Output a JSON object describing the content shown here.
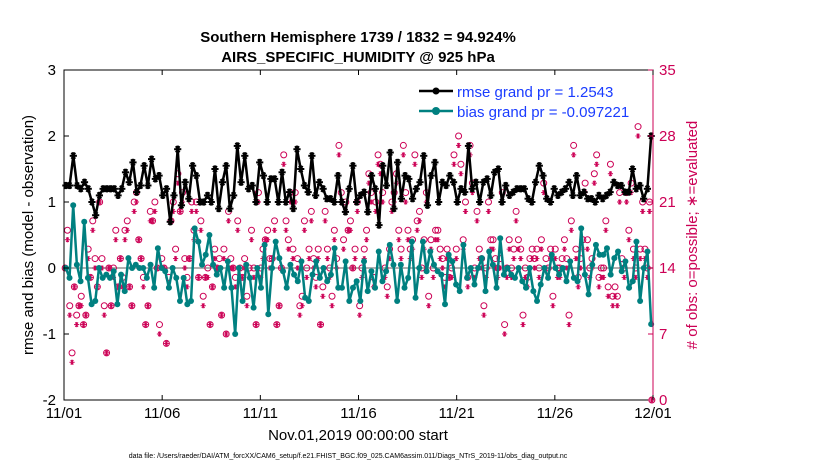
{
  "chart_data": {
    "type": "line",
    "title_line1": "Southern Hemisphere 1739 / 1832 = 94.924%",
    "title_line2": "AIRS_SPECIFIC_HUMIDITY @ 925 hPa",
    "xlabel": "Nov.01,2019 00:00:00 start",
    "ylabel_left": "rmse and bias (model - observation)",
    "ylabel_right": "# of obs: o=possible; ∗=evaluated",
    "ylim_left": [
      -2,
      3
    ],
    "ylim_right": [
      0,
      35
    ],
    "xlim_days": [
      0,
      30
    ],
    "x_ticks": [
      "11/01",
      "11/06",
      "11/11",
      "11/16",
      "11/21",
      "11/26",
      "12/01"
    ],
    "y_ticks_left": [
      "-2",
      "-1",
      "0",
      "1",
      "2",
      "3"
    ],
    "y_ticks_right": [
      "0",
      "7",
      "14",
      "21",
      "28",
      "35"
    ],
    "legend_position": "top-right",
    "colors": {
      "rmse": "#000000",
      "bias": "#008080",
      "obs": "#cc0055",
      "legend_text": "#1a3cff",
      "zero_line": "#b0b0b0"
    },
    "series": [
      {
        "name": "rmse",
        "label": "rmse grand pr = 1.2543",
        "marker": "asterisk",
        "values": [
          1.25,
          1.25,
          1.7,
          1.25,
          1.2,
          1.3,
          1.2,
          1.0,
          0.8,
          1.1,
          1.2,
          1.2,
          1.2,
          1.2,
          1.1,
          1.2,
          1.45,
          1.3,
          1.6,
          1.15,
          1.25,
          1.55,
          1.25,
          1.65,
          1.35,
          1.4,
          1.1,
          1.2,
          0.7,
          1.1,
          1.8,
          0.95,
          1.3,
          1.05,
          1.55,
          1.4,
          1.0,
          1.0,
          1.1,
          1.0,
          1.5,
          0.9,
          1.3,
          1.55,
          0.9,
          1.1,
          1.85,
          1.3,
          1.7,
          1.2,
          1.25,
          1.0,
          1.6,
          1.4,
          1.0,
          1.35,
          1.35,
          1.0,
          1.45,
          1.0,
          1.15,
          0.9,
          1.8,
          1.5,
          1.25,
          1.15,
          1.7,
          1.1,
          1.3,
          1.2,
          1.05,
          1.05,
          1.0,
          1.4,
          1.0,
          0.85,
          1.2,
          1.55,
          1.0,
          1.1,
          1.15,
          0.85,
          1.4,
          1.2,
          0.65,
          1.55,
          1.25,
          1.75,
          0.9,
          1.6,
          1.05,
          1.4,
          1.35,
          1.05,
          1.2,
          1.3,
          1.7,
          0.95,
          1.4,
          1.6,
          1.0,
          1.3,
          1.25,
          1.4,
          1.3,
          1.0,
          1.2,
          1.15,
          1.85,
          1.2,
          1.3,
          1.0,
          1.3,
          1.35,
          1.1,
          1.45,
          1.5,
          1.0,
          1.25,
          1.1,
          1.15,
          1.2,
          1.2,
          1.2,
          1.05,
          1.0,
          1.3,
          1.55,
          1.4,
          1.05,
          1.0,
          1.2,
          1.1,
          1.15,
          1.2,
          1.3,
          1.1,
          1.4,
          1.1,
          1.15,
          1.05,
          1.05,
          1.0,
          1.1,
          1.05,
          1.1,
          1.15,
          1.3,
          1.25,
          1.25,
          1.15,
          1.15,
          1.5,
          1.2,
          1.25,
          1.05,
          1.2,
          2.0
        ]
      },
      {
        "name": "bias",
        "label": "bias grand pr = -0.097221",
        "marker": "circle",
        "values": [
          0.0,
          -0.15,
          0.95,
          0.05,
          -0.2,
          0.7,
          -0.15,
          -0.55,
          -0.5,
          0.0,
          -0.15,
          -0.1,
          -0.15,
          -0.05,
          -0.55,
          -0.1,
          -0.35,
          0.15,
          0.0,
          0.05,
          0.0,
          0.0,
          -0.15,
          0.05,
          -0.3,
          0.3,
          0.0,
          -0.05,
          -0.3,
          0.0,
          -0.15,
          -0.5,
          -0.15,
          -0.55,
          -0.5,
          0.6,
          0.4,
          0.05,
          0.2,
          0.5,
          0.05,
          -0.1,
          0.0,
          -0.3,
          0.1,
          -0.3,
          -1.0,
          0.0,
          -0.5,
          0.05,
          -0.15,
          -0.6,
          0.0,
          -0.3,
          0.35,
          -0.7,
          0.0,
          0.4,
          0.15,
          -0.05,
          -0.3,
          0.05,
          -0.1,
          -0.2,
          0.1,
          -0.45,
          -0.5,
          -0.1,
          0.1,
          -0.15,
          0.0,
          -0.2,
          -0.1,
          0.3,
          -0.3,
          -0.3,
          0.1,
          -0.5,
          -0.3,
          -0.2,
          -0.5,
          0.1,
          -0.35,
          -0.05,
          -0.3,
          0.25,
          -0.2,
          -0.05,
          0.35,
          0.05,
          -0.5,
          0.05,
          -0.3,
          -0.15,
          0.4,
          -0.45,
          0.0,
          0.4,
          -0.05,
          0.25,
          0.05,
          -0.05,
          -0.1,
          -0.55,
          0.2,
          0.1,
          -0.25,
          -0.35,
          0.35,
          -0.15,
          0.0,
          -0.25,
          0.0,
          0.15,
          -0.35,
          0.25,
          0.05,
          -0.3,
          0.45,
          -0.1,
          0.0,
          -0.1,
          -0.15,
          0.0,
          -0.2,
          -0.3,
          0.0,
          -0.35,
          -0.5,
          -0.25,
          0.0,
          -0.15,
          0.2,
          0.0,
          -0.1,
          0.0,
          -0.2,
          0.1,
          -0.15,
          -0.2,
          0.6,
          -0.1,
          -0.4,
          0.05,
          0.35,
          0.2,
          0.2,
          0.3,
          -0.1,
          0.15,
          0.25,
          -0.05,
          0.1,
          -0.3,
          -0.2,
          0.4,
          -0.5,
          0.0,
          0.25,
          -0.85
        ]
      },
      {
        "name": "obs_possible",
        "marker": "o",
        "values": [
          14,
          18,
          10,
          5,
          12,
          9,
          10,
          11,
          8,
          9,
          16,
          13,
          19,
          15,
          12,
          21,
          15,
          10,
          5,
          14,
          10,
          14,
          18,
          12,
          15,
          13,
          18,
          19,
          12,
          10,
          21,
          22,
          17,
          15,
          13,
          8,
          10,
          20,
          19,
          21,
          14,
          8,
          15,
          14,
          6,
          13,
          19,
          21,
          16,
          24,
          20,
          22,
          15,
          13,
          15,
          21,
          18,
          21,
          13,
          19,
          11,
          13,
          14,
          8,
          12,
          16,
          14,
          15,
          9,
          16,
          7,
          20,
          15,
          14,
          13,
          19,
          14,
          13,
          15,
          11,
          14,
          18,
          14,
          8,
          22,
          14,
          16,
          17,
          18,
          15,
          15,
          19,
          8,
          10,
          14,
          26,
          19,
          17,
          22,
          16,
          22,
          15,
          10,
          11,
          19,
          14,
          16,
          20,
          15,
          13,
          16,
          8,
          12,
          20,
          16,
          14,
          11,
          18,
          15,
          27,
          22,
          17,
          21,
          18,
          19,
          14,
          16,
          21,
          10,
          14,
          16,
          18,
          24,
          22,
          13,
          21,
          26,
          25,
          22,
          14,
          12,
          16,
          21,
          22,
          24,
          18,
          16,
          27,
          22,
          18,
          16,
          17,
          26,
          19,
          20,
          14,
          17,
          22,
          11,
          17,
          14,
          18,
          18,
          16,
          15,
          13,
          16,
          13,
          14,
          26,
          16,
          28,
          25,
          17,
          21,
          13,
          27,
          23,
          14,
          20,
          16,
          15,
          10,
          14,
          21,
          17,
          17,
          15,
          14,
          15,
          22,
          8,
          14,
          17,
          14,
          16,
          20,
          17,
          16,
          9,
          14,
          13,
          15,
          16,
          15,
          16,
          14,
          17,
          23,
          15,
          14,
          16,
          11,
          16,
          14,
          14,
          15,
          17,
          15,
          9,
          19,
          27,
          16,
          13,
          15,
          17,
          23,
          17,
          14,
          15,
          24,
          26,
          13,
          14,
          14,
          19,
          12,
          25,
          11,
          12,
          11,
          22,
          15,
          14,
          22,
          18,
          23,
          16,
          14,
          29,
          16,
          21,
          16,
          14,
          21,
          0
        ]
      },
      {
        "name": "obs_evaluated",
        "marker": "asterisk",
        "values": [
          14,
          17,
          9,
          4,
          12,
          8,
          10,
          10,
          8,
          9,
          15,
          13,
          18,
          14,
          12,
          21,
          14,
          9,
          5,
          14,
          10,
          13,
          17,
          12,
          15,
          12,
          17,
          18,
          12,
          10,
          20,
          21,
          17,
          15,
          12,
          8,
          10,
          19,
          19,
          20,
          14,
          7,
          14,
          14,
          6,
          12,
          19,
          20,
          15,
          23,
          20,
          21,
          14,
          12,
          15,
          20,
          17,
          20,
          13,
          18,
          10,
          13,
          13,
          8,
          12,
          15,
          14,
          14,
          9,
          15,
          7,
          19,
          14,
          14,
          12,
          18,
          13,
          13,
          14,
          10,
          13,
          17,
          13,
          8,
          21,
          13,
          15,
          17,
          17,
          14,
          15,
          18,
          8,
          10,
          14,
          25,
          18,
          16,
          21,
          15,
          21,
          14,
          9,
          10,
          18,
          13,
          15,
          19,
          14,
          12,
          15,
          8,
          11,
          19,
          15,
          13,
          10,
          17,
          14,
          26,
          21,
          16,
          20,
          18,
          18,
          14,
          15,
          20,
          9,
          13,
          15,
          17,
          23,
          21,
          12,
          20,
          25,
          24,
          21,
          13,
          11,
          15,
          20,
          21,
          23,
          17,
          15,
          26,
          21,
          17,
          15,
          16,
          25,
          18,
          19,
          13,
          16,
          21,
          10,
          16,
          13,
          17,
          17,
          15,
          14,
          12,
          15,
          13,
          13,
          25,
          15,
          27,
          24,
          16,
          20,
          12,
          26,
          22,
          13,
          19,
          15,
          14,
          9,
          13,
          20,
          16,
          16,
          14,
          13,
          14,
          21,
          7,
          13,
          16,
          13,
          15,
          19,
          16,
          15,
          8,
          13,
          12,
          14,
          15,
          14,
          15,
          13,
          16,
          22,
          14,
          13,
          15,
          10,
          15,
          13,
          13,
          14,
          16,
          14,
          8,
          18,
          26,
          15,
          12,
          14,
          16,
          22,
          16,
          13,
          14,
          23,
          25,
          12,
          13,
          13,
          18,
          11,
          24,
          10,
          11,
          10,
          21,
          14,
          13,
          21,
          17,
          22,
          15,
          13,
          28,
          15,
          20,
          15,
          13,
          20,
          0
        ]
      }
    ]
  },
  "footnote": "data file: /Users/raeder/DAI/ATM_forcXX/CAM6_setup/f.e21.FHIST_BGC.f09_025.CAM6assim.011/Diags_NTrS_2019-11/obs_diag_output.nc"
}
